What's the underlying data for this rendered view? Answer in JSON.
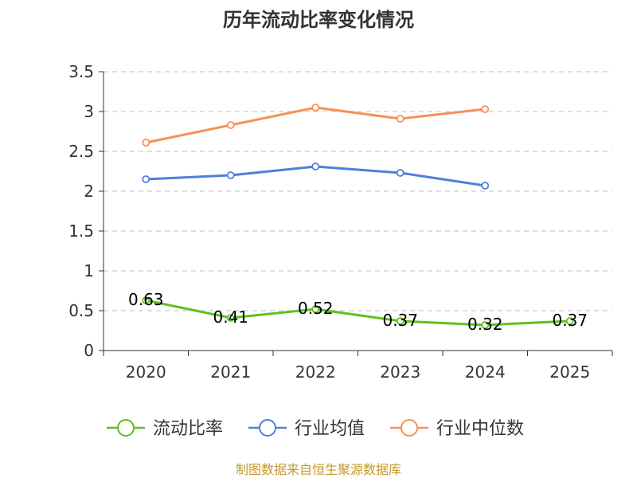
{
  "chart_data": {
    "type": "line",
    "title": "历年流动比率变化情况",
    "categories": [
      "2020",
      "2021",
      "2022",
      "2023",
      "2024",
      "2025"
    ],
    "y_ticks": [
      "0",
      "0.5",
      "1",
      "1.5",
      "2",
      "2.5",
      "3",
      "3.5"
    ],
    "ylim": [
      0,
      3.5
    ],
    "grid": true,
    "legend_position": "bottom",
    "series": [
      {
        "name": "流动比率",
        "color": "#5ec11f",
        "values": [
          0.63,
          0.41,
          0.52,
          0.37,
          0.32,
          0.37
        ],
        "labels": [
          "0.63",
          "0.41",
          "0.52",
          "0.37",
          "0.32",
          "0.37"
        ]
      },
      {
        "name": "行业均值",
        "color": "#4f7fdc",
        "values": [
          2.15,
          2.2,
          2.31,
          2.23,
          2.07,
          null
        ]
      },
      {
        "name": "行业中位数",
        "color": "#f79157",
        "values": [
          2.61,
          2.83,
          3.05,
          2.91,
          3.03,
          null
        ]
      }
    ],
    "source": "制图数据来自恒生聚源数据库",
    "source_color": "#c49a2c"
  }
}
